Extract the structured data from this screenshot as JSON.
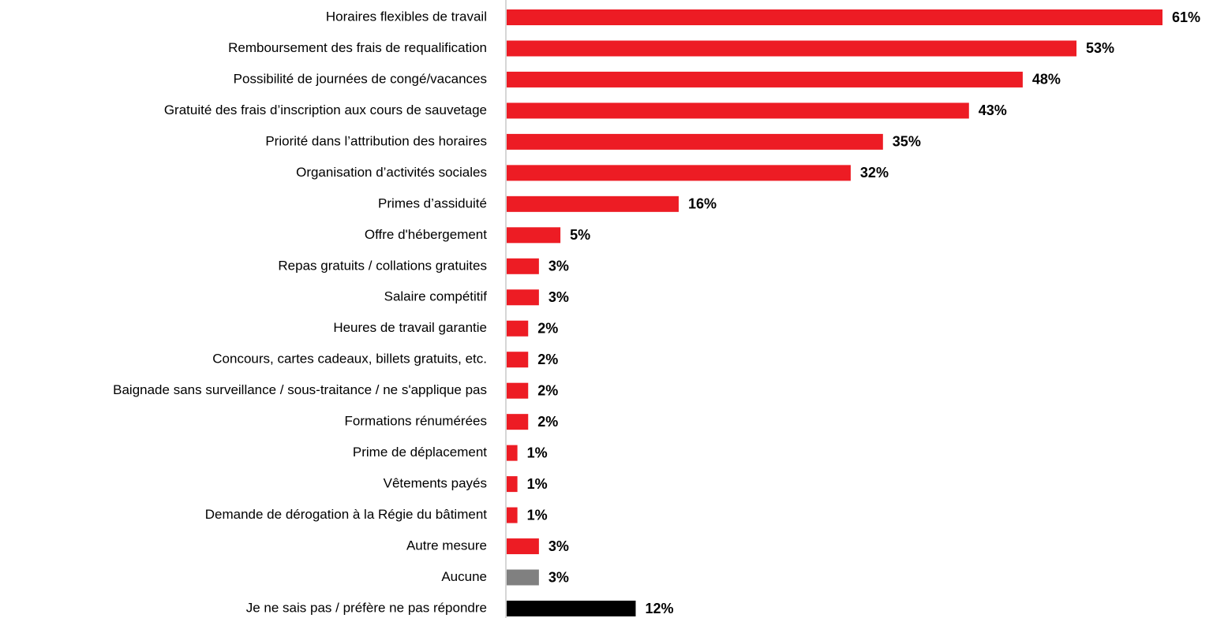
{
  "chart_data": {
    "type": "barh",
    "categories": [
      "Horaires flexibles de travail",
      "Remboursement des frais de requalification",
      "Possibilité de journées de congé/vacances",
      "Gratuité des frais d’inscription aux cours de sauvetage",
      "Priorité dans l’attribution des horaires",
      "Organisation d’activités sociales",
      "Primes d’assiduité",
      "Offre d'hébergement",
      "Repas gratuits / collations gratuites",
      "Salaire compétitif",
      "Heures de travail garantie",
      "Concours, cartes cadeaux, billets gratuits, etc.",
      "Baignade sans surveillance / sous-traitance / ne s'applique pas",
      "Formations rénumérées",
      "Prime de déplacement",
      "Vêtements payés",
      "Demande de dérogation à la Régie du bâtiment",
      "Autre mesure",
      "Aucune",
      "Je ne sais pas / préfère ne pas répondre"
    ],
    "values": [
      61,
      53,
      48,
      43,
      35,
      32,
      16,
      5,
      3,
      3,
      2,
      2,
      2,
      2,
      1,
      1,
      1,
      3,
      3,
      12
    ],
    "value_labels": [
      "61%",
      "53%",
      "48%",
      "43%",
      "35%",
      "32%",
      "16%",
      "5%",
      "3%",
      "3%",
      "2%",
      "2%",
      "2%",
      "2%",
      "1%",
      "1%",
      "1%",
      "3%",
      "3%",
      "12%"
    ],
    "colors": [
      "#ed1c24",
      "#ed1c24",
      "#ed1c24",
      "#ed1c24",
      "#ed1c24",
      "#ed1c24",
      "#ed1c24",
      "#ed1c24",
      "#ed1c24",
      "#ed1c24",
      "#ed1c24",
      "#ed1c24",
      "#ed1c24",
      "#ed1c24",
      "#ed1c24",
      "#ed1c24",
      "#ed1c24",
      "#ed1c24",
      "#808080",
      "#000000"
    ]
  }
}
